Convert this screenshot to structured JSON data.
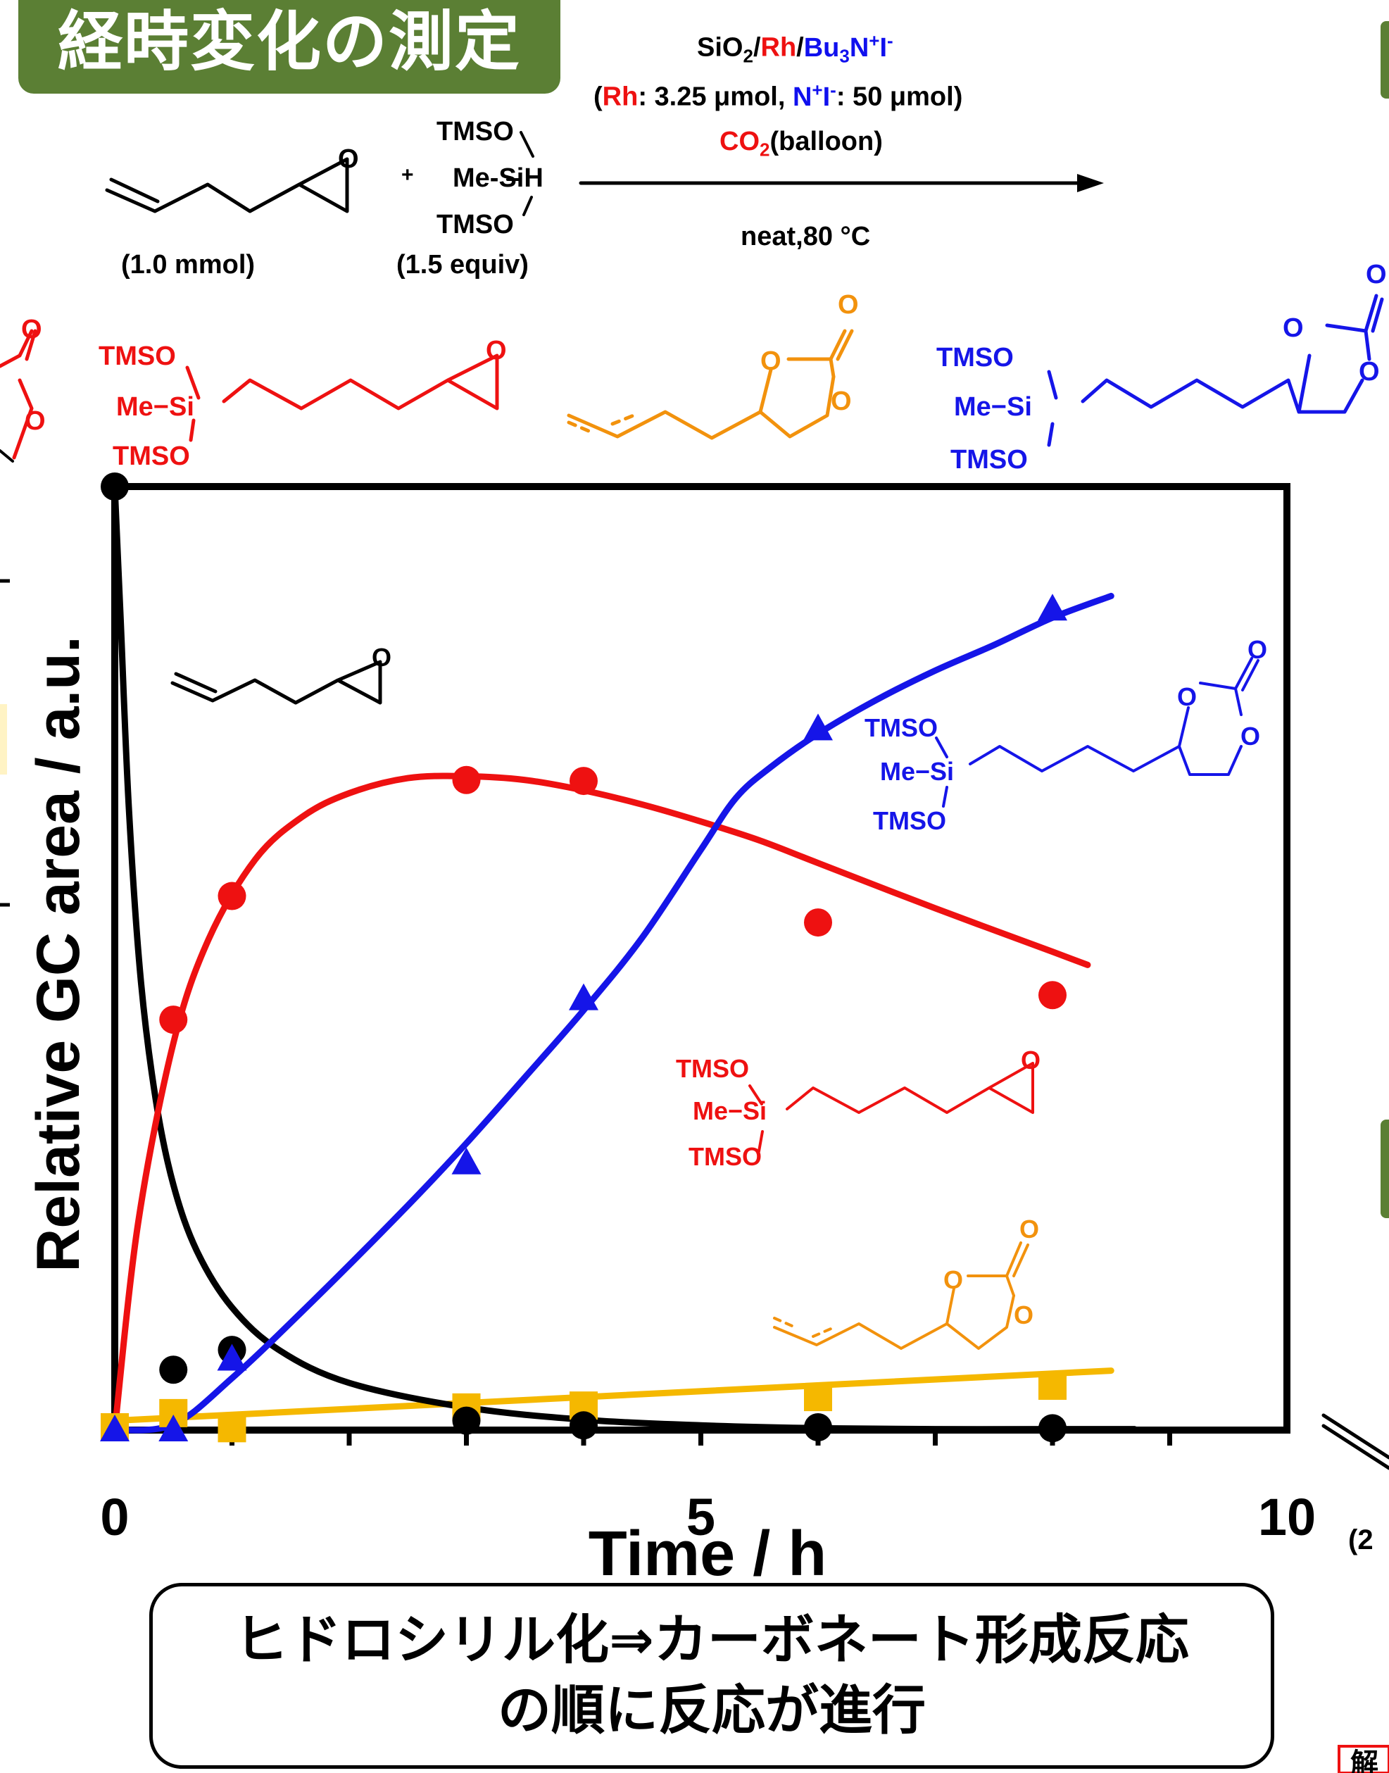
{
  "title": "経時変化の測定",
  "reaction": {
    "conditions_line1": "SiO₂/Rh/Bu₃N⁺I⁻",
    "conditions_line2": "(Rh: 3.25 μmol, N⁺I⁻: 50 μmol)",
    "conditions_line3": "CO₂(balloon)",
    "conditions_below": "neat,80 °C",
    "substrate_amount": "(1.0 mmol)",
    "silane_amount": "(1.5 equiv)",
    "plus": "+",
    "silane_top": "TMSO",
    "silane_mid": "Me-SiH",
    "silane_bottom": "TMSO"
  },
  "structure_labels": {
    "tmso": "TMSO",
    "me_si": "Me−Si",
    "oxygen": "O"
  },
  "chart_data": {
    "type": "line",
    "xlabel": "Time / h",
    "ylabel": "Relative GC area / a.u.",
    "xlim": [
      0,
      10
    ],
    "ylim": [
      0,
      100
    ],
    "x_ticks": [
      "0",
      "5",
      "10"
    ],
    "grid": false,
    "series": [
      {
        "name": "epoxide (starting material)",
        "color": "#000000",
        "marker": "circle",
        "points": [
          [
            0,
            100
          ],
          [
            0.5,
            6.4
          ],
          [
            1,
            8.5
          ],
          [
            3,
            1.0
          ],
          [
            4,
            0.5
          ],
          [
            6,
            0.3
          ],
          [
            8,
            0.2
          ]
        ],
        "curve": [
          [
            0,
            100
          ],
          [
            0.05,
            86
          ],
          [
            0.12,
            66
          ],
          [
            0.22,
            48
          ],
          [
            0.35,
            35
          ],
          [
            0.5,
            26
          ],
          [
            0.7,
            19
          ],
          [
            1.0,
            13
          ],
          [
            1.4,
            8.5
          ],
          [
            2.0,
            5.0
          ],
          [
            3.0,
            2.4
          ],
          [
            4.0,
            1.1
          ],
          [
            5.0,
            0.5
          ],
          [
            6.0,
            0.2
          ],
          [
            7.0,
            0.1
          ],
          [
            8.0,
            0.1
          ],
          [
            8.7,
            0.1
          ]
        ]
      },
      {
        "name": "hydrosilylated epoxide",
        "color": "#ee1111",
        "marker": "circle",
        "points": [
          [
            0.5,
            43.5
          ],
          [
            1,
            56.6
          ],
          [
            3,
            68.9
          ],
          [
            4,
            68.8
          ],
          [
            6,
            53.8
          ],
          [
            8,
            46.1
          ]
        ],
        "curve": [
          [
            0,
            0
          ],
          [
            0.2,
            22
          ],
          [
            0.5,
            41
          ],
          [
            0.8,
            52
          ],
          [
            1.2,
            60.5
          ],
          [
            1.6,
            65
          ],
          [
            2.0,
            67.5
          ],
          [
            2.5,
            69.1
          ],
          [
            3.0,
            69.3
          ],
          [
            3.5,
            68.9
          ],
          [
            4.0,
            67.8
          ],
          [
            4.5,
            66.3
          ],
          [
            5.0,
            64.5
          ],
          [
            5.5,
            62.5
          ],
          [
            6.0,
            60.1
          ],
          [
            7.0,
            55.3
          ],
          [
            8.0,
            50.7
          ],
          [
            8.3,
            49.3
          ]
        ]
      },
      {
        "name": "cyclic carbonate (hydrosilylated)",
        "color": "#1515e8",
        "marker": "triangle",
        "points": [
          [
            0,
            0
          ],
          [
            0.5,
            0
          ],
          [
            1,
            7.5
          ],
          [
            3,
            28.3
          ],
          [
            4,
            45.7
          ],
          [
            6,
            74.3
          ],
          [
            8,
            87.0
          ]
        ],
        "curve": [
          [
            0,
            0
          ],
          [
            0.5,
            0.6
          ],
          [
            1.0,
            5.5
          ],
          [
            1.7,
            13.8
          ],
          [
            2.5,
            23.8
          ],
          [
            3.0,
            30.4
          ],
          [
            3.5,
            37.4
          ],
          [
            4.0,
            44.5
          ],
          [
            4.5,
            52.2
          ],
          [
            5.0,
            61.5
          ],
          [
            5.3,
            67.0
          ],
          [
            5.6,
            70.3
          ],
          [
            6.0,
            73.8
          ],
          [
            6.5,
            77.4
          ],
          [
            7.0,
            80.5
          ],
          [
            7.5,
            83.2
          ],
          [
            8.0,
            86.1
          ],
          [
            8.5,
            88.4
          ]
        ]
      },
      {
        "name": "alkene carbonate",
        "color": "#f5b800",
        "marker": "square",
        "points": [
          [
            0,
            0.3
          ],
          [
            0.5,
            1.8
          ],
          [
            1,
            0.2
          ],
          [
            3,
            2.4
          ],
          [
            4,
            2.6
          ],
          [
            6,
            3.5
          ],
          [
            8,
            4.7
          ]
        ],
        "curve": [
          [
            0,
            1
          ],
          [
            8.5,
            6.3
          ]
        ]
      }
    ]
  },
  "conclusion": {
    "line1": "ヒドロシリル化⇒カーボネート形成反応",
    "line2": "の順に反応が進行"
  },
  "edge_text": {
    "right_partial_label": "(2",
    "bottom_right_partial": "解"
  }
}
